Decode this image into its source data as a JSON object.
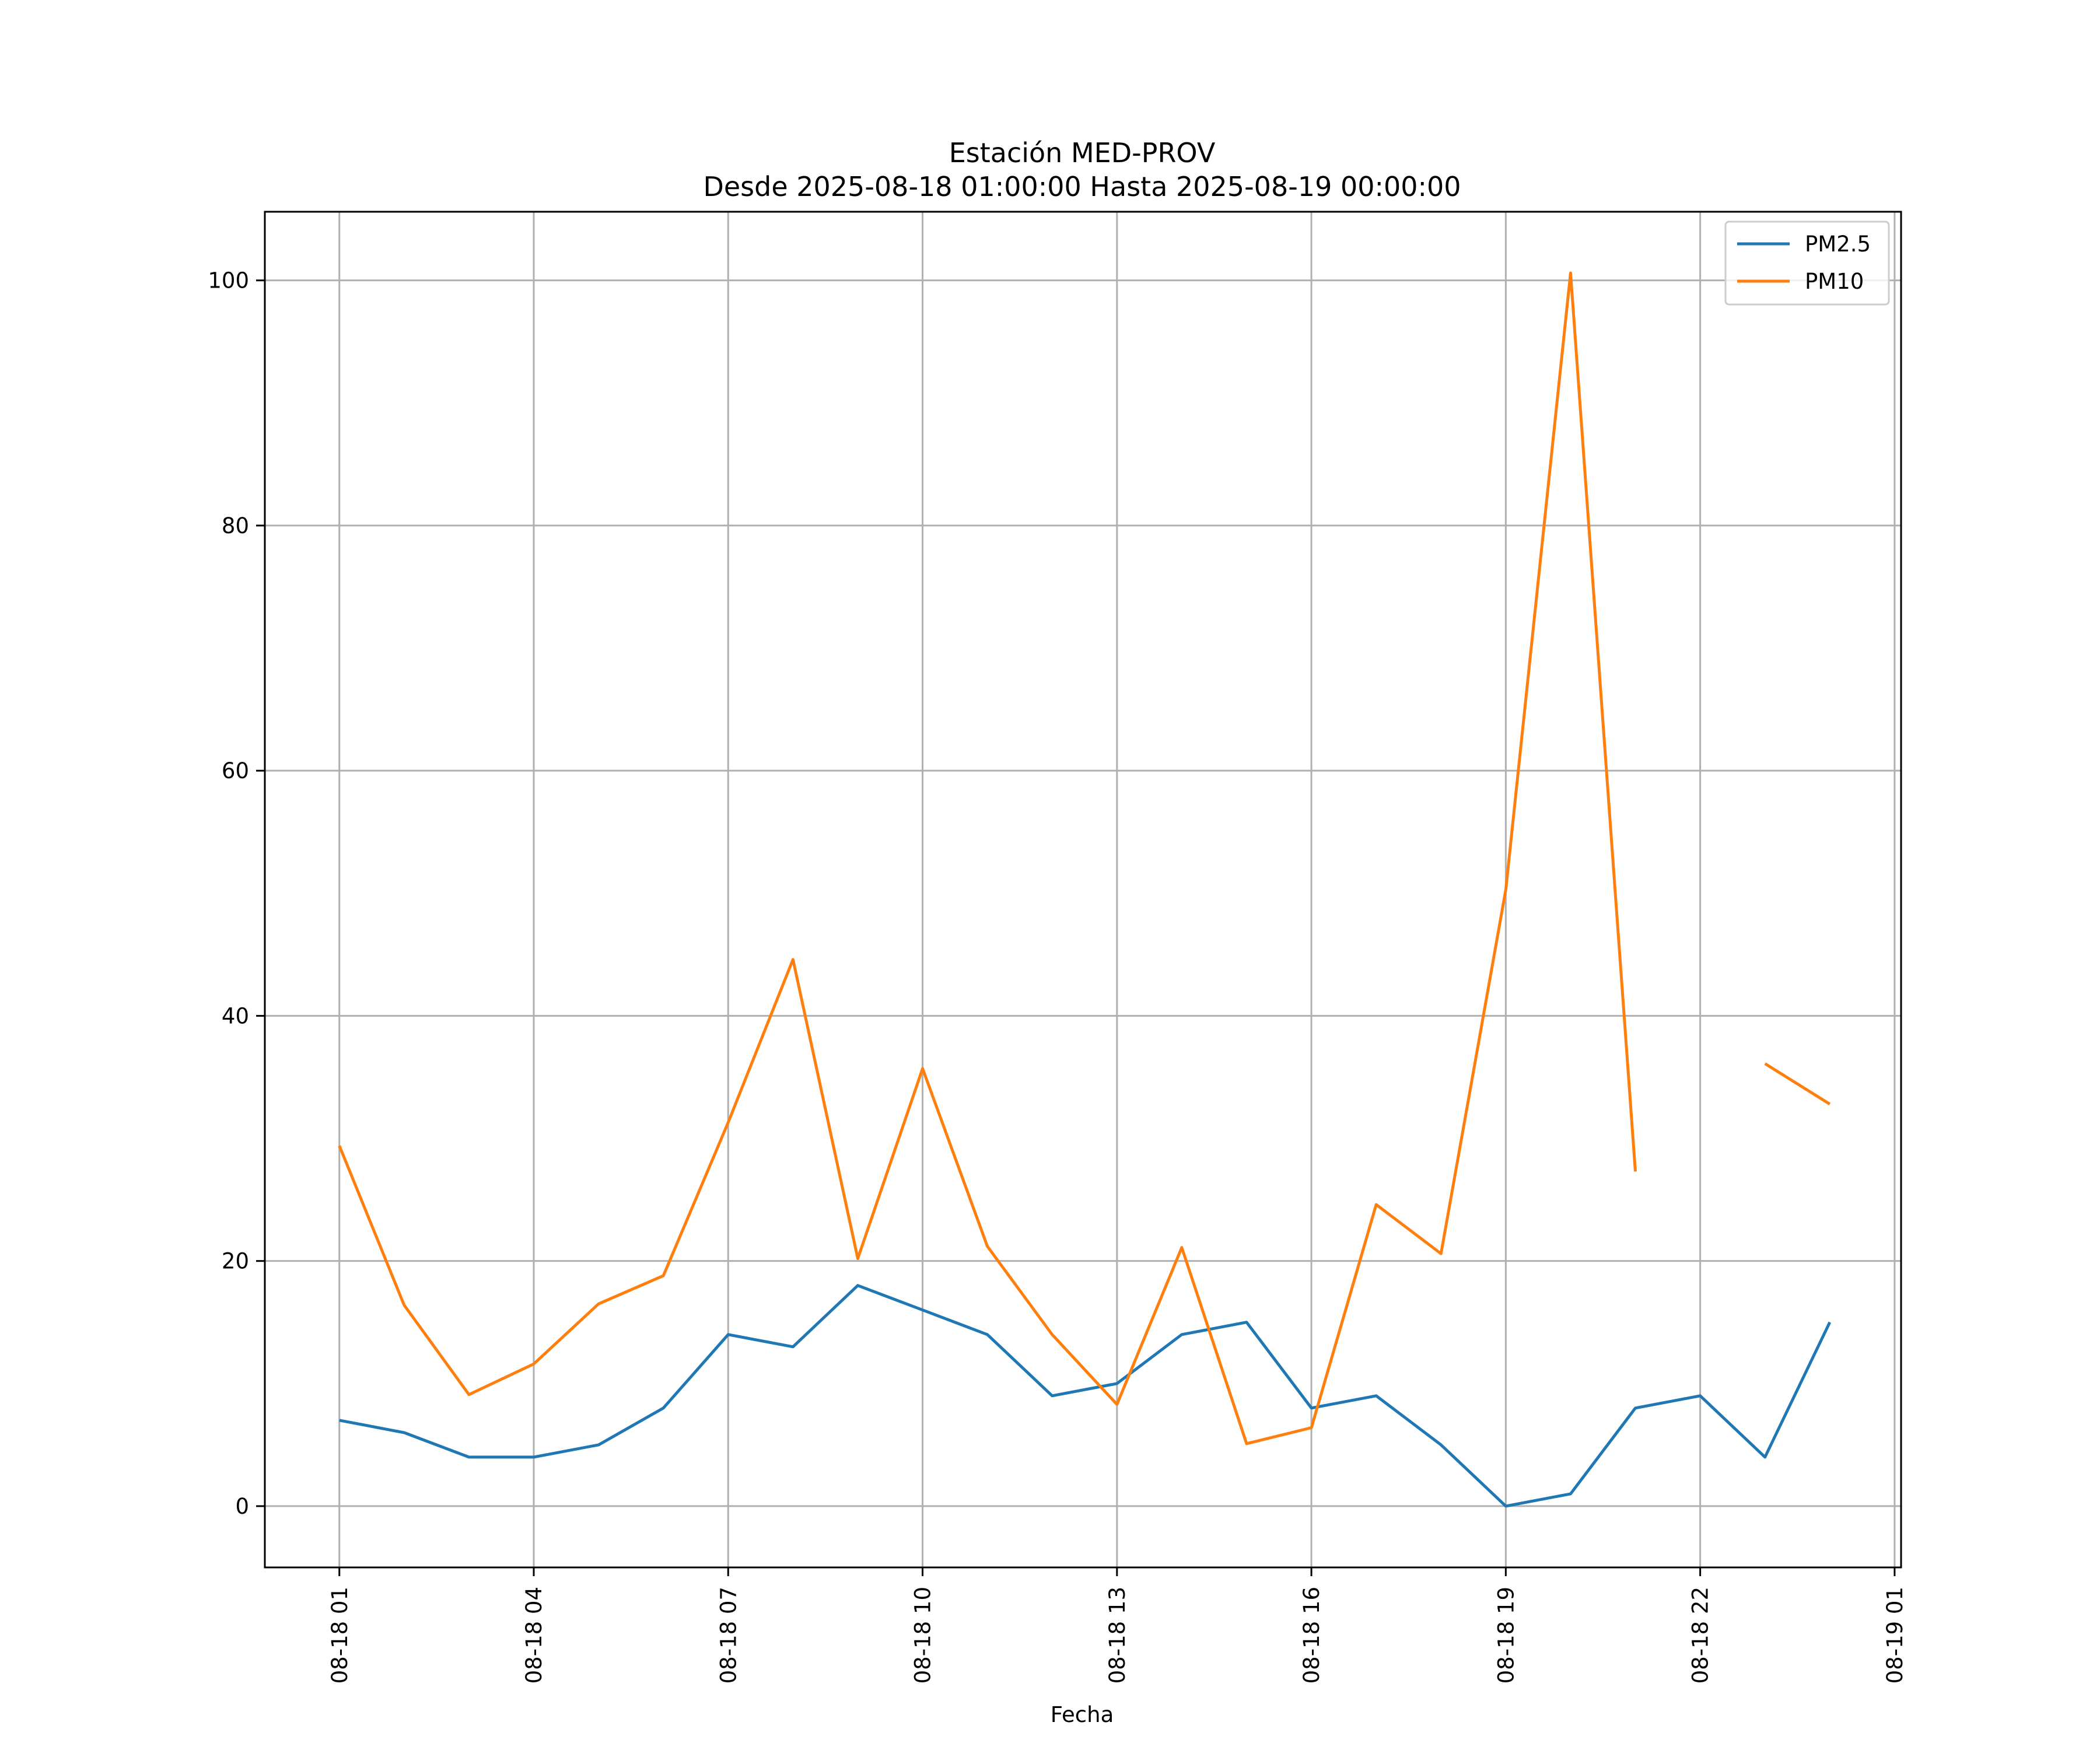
{
  "chart_data": {
    "type": "line",
    "title": "Estación MED-PROV",
    "subtitle": "Desde 2025-08-18 01:00:00 Hasta 2025-08-19 00:00:00",
    "xlabel": "Fecha",
    "ylabel": "",
    "x": [
      "08-18 01",
      "08-18 02",
      "08-18 03",
      "08-18 04",
      "08-18 05",
      "08-18 06",
      "08-18 07",
      "08-18 08",
      "08-18 09",
      "08-18 10",
      "08-18 11",
      "08-18 12",
      "08-18 13",
      "08-18 14",
      "08-18 15",
      "08-18 16",
      "08-18 17",
      "08-18 18",
      "08-18 19",
      "08-18 20",
      "08-18 21",
      "08-18 22",
      "08-18 23",
      "08-19 00"
    ],
    "x_hours": [
      1,
      2,
      3,
      4,
      5,
      6,
      7,
      8,
      9,
      10,
      11,
      12,
      13,
      14,
      15,
      16,
      17,
      18,
      19,
      20,
      21,
      22,
      23,
      24
    ],
    "xlim_hours": [
      -0.15,
      25.1
    ],
    "xticks": [
      {
        "hour": 1,
        "label": "08-18 01"
      },
      {
        "hour": 4,
        "label": "08-18 04"
      },
      {
        "hour": 7,
        "label": "08-18 07"
      },
      {
        "hour": 10,
        "label": "08-18 10"
      },
      {
        "hour": 13,
        "label": "08-18 13"
      },
      {
        "hour": 16,
        "label": "08-18 16"
      },
      {
        "hour": 19,
        "label": "08-18 19"
      },
      {
        "hour": 22,
        "label": "08-18 22"
      },
      {
        "hour": 25,
        "label": "08-19 01"
      }
    ],
    "ylim": [
      -5,
      105.6
    ],
    "yticks": [
      0,
      20,
      40,
      60,
      80,
      100
    ],
    "grid": true,
    "legend_position": "top-right",
    "series": [
      {
        "name": "PM2.5",
        "color": "#1f77b4",
        "values": [
          7,
          6,
          4,
          4,
          5,
          8,
          14,
          13,
          18,
          16,
          14,
          9,
          10,
          14,
          15,
          8,
          9,
          5,
          0,
          1,
          8,
          9,
          4,
          15
        ]
      },
      {
        "name": "PM10",
        "color": "#ff7f0e",
        "values": [
          29.4,
          16.4,
          9.1,
          11.6,
          16.5,
          18.8,
          31.3,
          44.6,
          20.2,
          35.7,
          21.2,
          14.0,
          8.3,
          21.1,
          5.1,
          6.4,
          24.6,
          20.6,
          50.3,
          100.6,
          27.3,
          null,
          36.1,
          32.8
        ]
      }
    ]
  }
}
